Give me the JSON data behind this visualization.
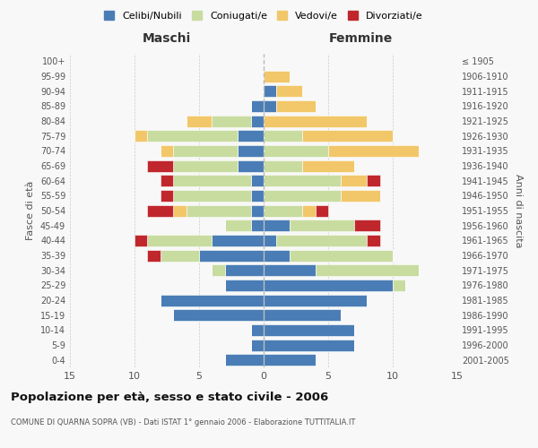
{
  "age_groups": [
    "0-4",
    "5-9",
    "10-14",
    "15-19",
    "20-24",
    "25-29",
    "30-34",
    "35-39",
    "40-44",
    "45-49",
    "50-54",
    "55-59",
    "60-64",
    "65-69",
    "70-74",
    "75-79",
    "80-84",
    "85-89",
    "90-94",
    "95-99",
    "100+"
  ],
  "birth_years": [
    "2001-2005",
    "1996-2000",
    "1991-1995",
    "1986-1990",
    "1981-1985",
    "1976-1980",
    "1971-1975",
    "1966-1970",
    "1961-1965",
    "1956-1960",
    "1951-1955",
    "1946-1950",
    "1941-1945",
    "1936-1940",
    "1931-1935",
    "1926-1930",
    "1921-1925",
    "1916-1920",
    "1911-1915",
    "1906-1910",
    "≤ 1905"
  ],
  "colors": {
    "celibe": "#4a7db5",
    "coniugato": "#c8dca0",
    "vedovo": "#f2c76a",
    "divorziato": "#c0272d"
  },
  "male": {
    "celibe": [
      3,
      1,
      1,
      7,
      8,
      3,
      3,
      5,
      4,
      1,
      1,
      1,
      1,
      2,
      2,
      2,
      1,
      1,
      0,
      0,
      0
    ],
    "coniugato": [
      0,
      0,
      0,
      0,
      0,
      0,
      1,
      3,
      5,
      2,
      5,
      6,
      6,
      5,
      5,
      7,
      3,
      0,
      0,
      0,
      0
    ],
    "vedovo": [
      0,
      0,
      0,
      0,
      0,
      0,
      0,
      0,
      0,
      0,
      1,
      0,
      0,
      0,
      1,
      1,
      2,
      0,
      0,
      0,
      0
    ],
    "divorziato": [
      0,
      0,
      0,
      0,
      0,
      0,
      0,
      1,
      1,
      0,
      2,
      1,
      1,
      2,
      0,
      0,
      0,
      0,
      0,
      0,
      0
    ]
  },
  "female": {
    "nubile": [
      4,
      7,
      7,
      6,
      8,
      10,
      4,
      2,
      1,
      2,
      0,
      0,
      0,
      0,
      0,
      0,
      0,
      1,
      1,
      0,
      0
    ],
    "coniugata": [
      0,
      0,
      0,
      0,
      0,
      1,
      8,
      8,
      7,
      5,
      3,
      6,
      6,
      3,
      5,
      3,
      0,
      0,
      0,
      0,
      0
    ],
    "vedova": [
      0,
      0,
      0,
      0,
      0,
      0,
      0,
      0,
      0,
      0,
      1,
      3,
      2,
      4,
      7,
      7,
      8,
      3,
      2,
      2,
      0
    ],
    "divorziata": [
      0,
      0,
      0,
      0,
      0,
      0,
      0,
      0,
      1,
      2,
      1,
      0,
      1,
      0,
      0,
      0,
      0,
      0,
      0,
      0,
      0
    ]
  },
  "xlim": 15,
  "title": "Popolazione per età, sesso e stato civile - 2006",
  "subtitle": "COMUNE DI QUARNA SOPRA (VB) - Dati ISTAT 1° gennaio 2006 - Elaborazione TUTTITALIA.IT",
  "ylabel_left": "Fasce di età",
  "ylabel_right": "Anni di nascita",
  "xlabel_left": "Maschi",
  "xlabel_right": "Femmine"
}
